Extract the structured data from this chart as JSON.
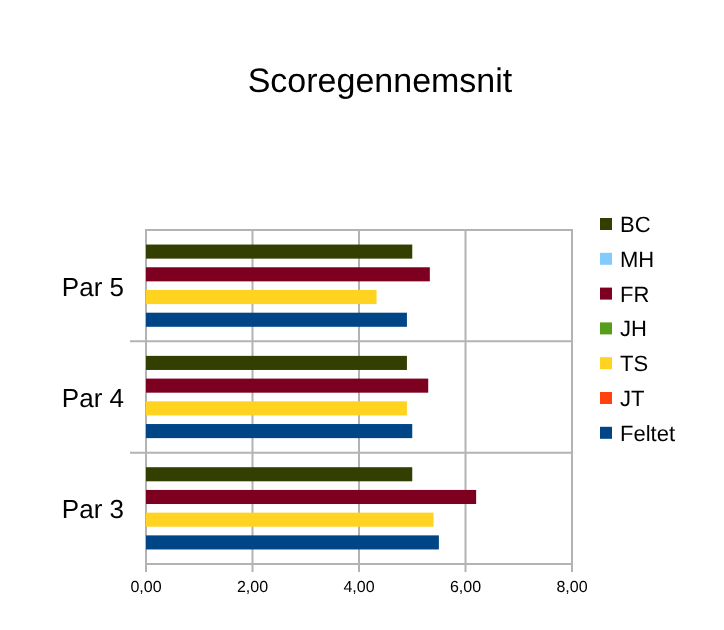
{
  "chart_data": {
    "type": "bar",
    "orientation": "horizontal",
    "title": "Scoregennemsnit",
    "categories": [
      "Par 5",
      "Par 4",
      "Par 3"
    ],
    "series": [
      {
        "name": "BC",
        "color": "#333f00",
        "values": [
          5.0,
          4.9,
          5.0
        ]
      },
      {
        "name": "MH",
        "color": "#83caff",
        "values": [
          null,
          null,
          null
        ]
      },
      {
        "name": "FR",
        "color": "#7e0021",
        "values": [
          5.33,
          5.3,
          6.2
        ]
      },
      {
        "name": "JH",
        "color": "#579d1c",
        "values": [
          null,
          null,
          null
        ]
      },
      {
        "name": "TS",
        "color": "#ffd320",
        "values": [
          4.33,
          4.9,
          5.4
        ]
      },
      {
        "name": "JT",
        "color": "#ff420e",
        "values": [
          null,
          null,
          null
        ]
      },
      {
        "name": "Feltet",
        "color": "#004586",
        "values": [
          4.9,
          5.0,
          5.5
        ]
      }
    ],
    "xlim": [
      0,
      8
    ],
    "xticks": [
      {
        "value": 0,
        "label": "0,00"
      },
      {
        "value": 2,
        "label": "2,00"
      },
      {
        "value": 4,
        "label": "4,00"
      },
      {
        "value": 6,
        "label": "6,00"
      },
      {
        "value": 8,
        "label": "8,00"
      }
    ],
    "grid": "x",
    "legend": "right"
  }
}
